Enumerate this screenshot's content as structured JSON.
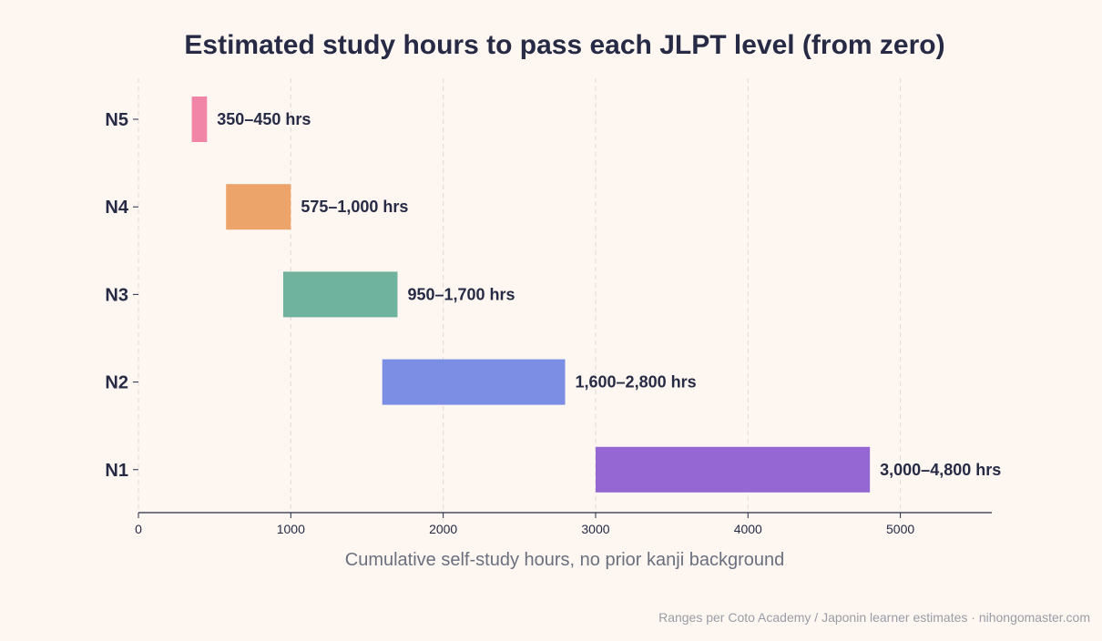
{
  "chart_data": {
    "type": "bar",
    "orientation": "horizontal",
    "title": "Estimated study hours to pass each JLPT level (from zero)",
    "xlabel": "Cumulative self-study hours, no prior kanji background",
    "ylabel": "",
    "xlim": [
      0,
      5600
    ],
    "xticks": [
      0,
      1000,
      2000,
      3000,
      4000,
      5000
    ],
    "grid": "x-dashed",
    "categories": [
      "N5",
      "N4",
      "N3",
      "N2",
      "N1"
    ],
    "ranges": [
      {
        "level": "N5",
        "start": 350,
        "end": 450,
        "label": "350–450 hrs",
        "color": "#f185a8"
      },
      {
        "level": "N4",
        "start": 575,
        "end": 1000,
        "label": "575–1,000 hrs",
        "color": "#eca46b"
      },
      {
        "level": "N3",
        "start": 950,
        "end": 1700,
        "label": "950–1,700 hrs",
        "color": "#6fb29d"
      },
      {
        "level": "N2",
        "start": 1600,
        "end": 2800,
        "label": "1,600–2,800 hrs",
        "color": "#7b8ee3"
      },
      {
        "level": "N1",
        "start": 3000,
        "end": 4800,
        "label": "3,000–4,800 hrs",
        "color": "#9467d2"
      }
    ],
    "source": "Ranges per Coto Academy / Japonin learner estimates  ·  nihongomaster.com"
  }
}
